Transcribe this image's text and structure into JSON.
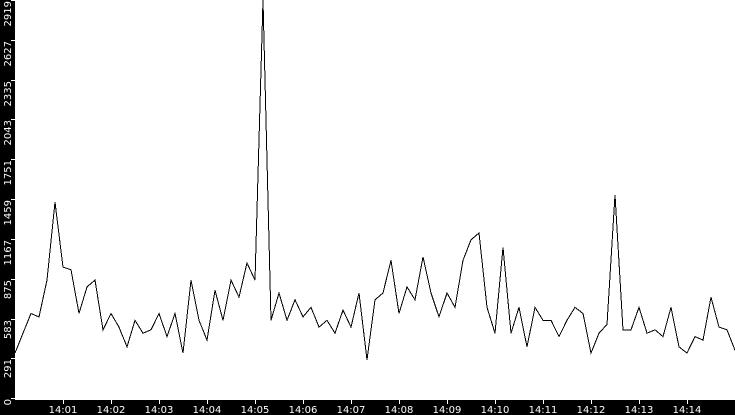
{
  "chart_data": {
    "type": "line",
    "title": "",
    "xlabel": "",
    "ylabel": "",
    "ylim": [
      0,
      2919
    ],
    "xlim": [
      "14:00:00",
      "14:15:00"
    ],
    "grid": false,
    "y_ticks": [
      "0",
      "291",
      "583",
      "875",
      "1167",
      "1459",
      "1751",
      "2043",
      "2335",
      "2627",
      "2919"
    ],
    "x_ticks": [
      "14:01",
      "14:02",
      "14:03",
      "14:04",
      "14:05",
      "14:06",
      "14:07",
      "14:08",
      "14:09",
      "14:10",
      "14:11",
      "14:12",
      "14:13",
      "14:14"
    ],
    "colors": {
      "line": "#000000",
      "plot_bg": "#ffffff",
      "axis_bg": "#000000",
      "axis_text": "#ffffff"
    },
    "series": [
      {
        "x": [
          "14:00:00",
          "14:00:10",
          "14:00:20",
          "14:00:30",
          "14:00:40",
          "14:00:50",
          "14:01:00",
          "14:01:10",
          "14:01:20",
          "14:01:30",
          "14:01:40",
          "14:01:50",
          "14:02:00",
          "14:02:10",
          "14:02:20",
          "14:02:30",
          "14:02:40",
          "14:02:50",
          "14:03:00",
          "14:03:10",
          "14:03:20",
          "14:03:30",
          "14:03:40",
          "14:03:50",
          "14:04:00",
          "14:04:10",
          "14:04:20",
          "14:04:30",
          "14:04:40",
          "14:04:50",
          "14:05:00",
          "14:05:10",
          "14:05:20",
          "14:05:30",
          "14:05:40",
          "14:05:50",
          "14:06:00",
          "14:06:10",
          "14:06:20",
          "14:06:30",
          "14:06:40",
          "14:06:50",
          "14:07:00",
          "14:07:10",
          "14:07:20",
          "14:07:30",
          "14:07:40",
          "14:07:50",
          "14:08:00",
          "14:08:10",
          "14:08:20",
          "14:08:30",
          "14:08:40",
          "14:08:50",
          "14:09:00",
          "14:09:10",
          "14:09:20",
          "14:09:30",
          "14:09:40",
          "14:09:50",
          "14:10:00",
          "14:10:10",
          "14:10:20",
          "14:10:30",
          "14:10:40",
          "14:10:50",
          "14:11:00",
          "14:11:10",
          "14:11:20",
          "14:11:30",
          "14:11:40",
          "14:11:50",
          "14:12:00",
          "14:12:10",
          "14:12:20",
          "14:12:30",
          "14:12:40",
          "14:12:50",
          "14:13:00",
          "14:13:10",
          "14:13:20",
          "14:13:30",
          "14:13:40",
          "14:13:50",
          "14:14:00",
          "14:14:10",
          "14:14:20",
          "14:14:30",
          "14:14:40",
          "14:14:50",
          "14:15:00"
        ],
        "values": [
          330,
          475,
          620,
          595,
          865,
          1437,
          960,
          940,
          620,
          815,
          865,
          500,
          620,
          520,
          375,
          570,
          475,
          500,
          620,
          450,
          620,
          330,
          865,
          570,
          425,
          790,
          570,
          865,
          740,
          990,
          865,
          2919,
          570,
          770,
          570,
          720,
          595,
          665,
          520,
          570,
          475,
          645,
          520,
          770,
          280,
          720,
          770,
          1010,
          620,
          815,
          720,
          1035,
          770,
          595,
          770,
          665,
          1010,
          1160,
          1210,
          665,
          475,
          1105,
          475,
          665,
          375,
          665,
          570,
          570,
          450,
          570,
          665,
          620,
          330,
          475,
          540,
          1490,
          500,
          500,
          665,
          475,
          500,
          450,
          665,
          375,
          330,
          450,
          425,
          740,
          520,
          500,
          350
        ]
      }
    ]
  }
}
